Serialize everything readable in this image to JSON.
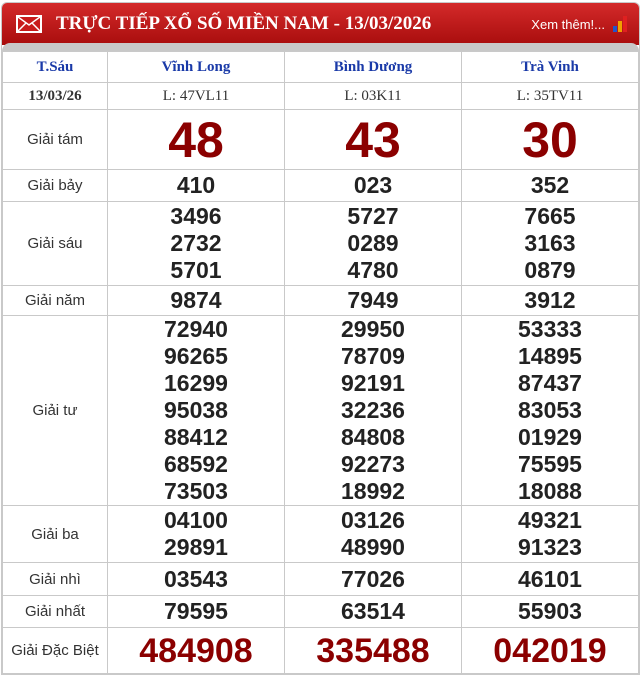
{
  "header": {
    "title": "TRỰC TIẾP XỔ SỐ MIỀN NAM - 13/03/2026",
    "more": "Xem thêm!...",
    "icon": "mail-icon"
  },
  "day": "T.Sáu",
  "date": "13/03/26",
  "provinces": [
    {
      "name": "Vĩnh Long",
      "code": "L: 47VL11"
    },
    {
      "name": "Bình Dương",
      "code": "L: 03K11"
    },
    {
      "name": "Trà Vinh",
      "code": "L: 35TV11"
    }
  ],
  "prizes": [
    {
      "label": "Giải tám",
      "style": "big",
      "values": [
        [
          "48"
        ],
        [
          "43"
        ],
        [
          "30"
        ]
      ]
    },
    {
      "label": "Giải bảy",
      "style": "num",
      "values": [
        [
          "410"
        ],
        [
          "023"
        ],
        [
          "352"
        ]
      ]
    },
    {
      "label": "Giải sáu",
      "style": "num",
      "values": [
        [
          "3496",
          "2732",
          "5701"
        ],
        [
          "5727",
          "0289",
          "4780"
        ],
        [
          "7665",
          "3163",
          "0879"
        ]
      ]
    },
    {
      "label": "Giải năm",
      "style": "num",
      "values": [
        [
          "9874"
        ],
        [
          "7949"
        ],
        [
          "3912"
        ]
      ]
    },
    {
      "label": "Giải tư",
      "style": "num",
      "values": [
        [
          "72940",
          "96265",
          "16299",
          "95038",
          "88412",
          "68592",
          "73503"
        ],
        [
          "29950",
          "78709",
          "92191",
          "32236",
          "84808",
          "92273",
          "18992"
        ],
        [
          "53333",
          "14895",
          "87437",
          "83053",
          "01929",
          "75595",
          "18088"
        ]
      ]
    },
    {
      "label": "Giải ba",
      "style": "num",
      "values": [
        [
          "04100",
          "29891"
        ],
        [
          "03126",
          "48990"
        ],
        [
          "49321",
          "91323"
        ]
      ]
    },
    {
      "label": "Giải nhì",
      "style": "num",
      "values": [
        [
          "03543"
        ],
        [
          "77026"
        ],
        [
          "46101"
        ]
      ]
    },
    {
      "label": "Giải nhất",
      "style": "num",
      "values": [
        [
          "79595"
        ],
        [
          "63514"
        ],
        [
          "55903"
        ]
      ]
    },
    {
      "label": "Giải Đặc Biệt",
      "style": "db",
      "values": [
        [
          "484908"
        ],
        [
          "335488"
        ],
        [
          "042019"
        ]
      ]
    }
  ],
  "colors": {
    "header": "#c01818",
    "special": "#8b0000",
    "province": "#1a3aa8"
  }
}
